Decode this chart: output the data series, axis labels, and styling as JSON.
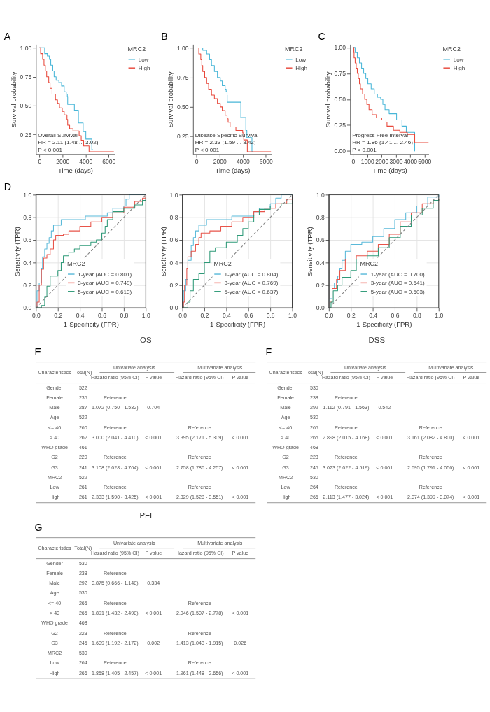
{
  "chart_data": [
    {
      "type": "step",
      "xlabel": "Time (days)",
      "ylabel": "Survival probability",
      "legend_title": "MRC2",
      "legend": "top right",
      "xlim": [
        -300,
        6500
      ],
      "xticks": [
        0,
        2000,
        4000,
        6000
      ],
      "ylim": [
        0.08,
        1.03
      ],
      "yticks": [
        {
          "value": 0.25,
          "label": "0.25"
        },
        {
          "value": 0.5,
          "label": "0.50"
        },
        {
          "value": 0.75,
          "label": "0.75"
        },
        {
          "value": 1,
          "label": "1.00"
        }
      ],
      "annotations": [
        "A",
        "Overall Survival",
        "HR = 2.11 (1.48 ... 3.02)",
        "P < 0.001"
      ],
      "series": [
        {
          "name": "Low",
          "color": "#48b6d8",
          "x": [
            0,
            460,
            690,
            870,
            985,
            1160,
            1275,
            1450,
            1690,
            1920,
            2150,
            2330,
            2420,
            2450,
            3030,
            3380,
            3790,
            4020,
            4540,
            4620
          ],
          "values": [
            1,
            0.95,
            0.93,
            0.9,
            0.85,
            0.8,
            0.75,
            0.72,
            0.7,
            0.67,
            0.62,
            0.6,
            0.58,
            0.51,
            0.46,
            0.35,
            0.275,
            0.21,
            0.12,
            0.12
          ]
        },
        {
          "name": "High",
          "color": "#e8483b",
          "x": [
            0,
            105,
            280,
            400,
            515,
            630,
            810,
            925,
            1100,
            1390,
            1570,
            1740,
            1980,
            2150,
            2390,
            2450,
            2620,
            2910,
            3440,
            3620,
            3830,
            4300,
            6450
          ],
          "values": [
            1,
            0.95,
            0.9,
            0.85,
            0.8,
            0.75,
            0.7,
            0.65,
            0.6,
            0.55,
            0.52,
            0.48,
            0.45,
            0.42,
            0.38,
            0.33,
            0.3,
            0.28,
            0.24,
            0.2,
            0.15,
            0.1,
            0.1
          ]
        }
      ]
    },
    {
      "type": "step",
      "xlabel": "Time (days)",
      "ylabel": "Survival probability",
      "legend_title": "MRC2",
      "legend": "top right",
      "xlim": [
        -300,
        6500
      ],
      "xticks": [
        0,
        2000,
        4000,
        6000
      ],
      "ylim": [
        0.1,
        1.03
      ],
      "yticks": [
        {
          "value": 0.25,
          "label": "0.25"
        },
        {
          "value": 0.5,
          "label": "0.50"
        },
        {
          "value": 0.75,
          "label": "0.75"
        },
        {
          "value": 1,
          "label": "1.00"
        }
      ],
      "annotations": [
        "B",
        "Disease Specific Survival",
        "HR = 2.33 (1.59 ... 3.42)",
        "P < 0.001"
      ],
      "series": [
        {
          "name": "Low",
          "color": "#48b6d8",
          "x": [
            0,
            540,
            880,
            1130,
            1300,
            1550,
            1810,
            2060,
            2230,
            2480,
            2570,
            2650,
            2660,
            3840,
            4270,
            4360,
            4800,
            4880
          ],
          "values": [
            1,
            0.98,
            0.95,
            0.9,
            0.85,
            0.8,
            0.75,
            0.72,
            0.68,
            0.65,
            0.63,
            0.6,
            0.54,
            0.41,
            0.3,
            0.24,
            0.12,
            0.12
          ]
        },
        {
          "name": "High",
          "color": "#e8483b",
          "x": [
            0,
            200,
            370,
            460,
            540,
            710,
            880,
            1050,
            1300,
            1550,
            1810,
            2060,
            2230,
            2480,
            2650,
            2740,
            2910,
            3410,
            4000,
            4090,
            4400,
            6450
          ],
          "values": [
            1,
            0.95,
            0.9,
            0.85,
            0.8,
            0.75,
            0.7,
            0.65,
            0.6,
            0.57,
            0.53,
            0.5,
            0.47,
            0.43,
            0.4,
            0.37,
            0.33,
            0.3,
            0.28,
            0.22,
            0.12,
            0.12
          ]
        }
      ]
    },
    {
      "type": "step",
      "xlabel": "Time (days)",
      "ylabel": "Survival probability",
      "legend_title": "MRC2",
      "legend": "top right",
      "xlim": [
        -200,
        5300
      ],
      "xticks": [
        0,
        1000,
        2000,
        3000,
        4000,
        5000
      ],
      "ylim": [
        -0.03,
        1.03
      ],
      "yticks": [
        {
          "value": 0,
          "label": "0.00"
        },
        {
          "value": 0.25,
          "label": "0.25"
        },
        {
          "value": 0.5,
          "label": "0.50"
        },
        {
          "value": 0.75,
          "label": "0.75"
        },
        {
          "value": 1,
          "label": "1.00"
        }
      ],
      "annotations": [
        "C",
        "Progress Free Interval",
        "HR = 1.86 (1.41 ... 2.46)",
        "P < 0.001"
      ],
      "series": [
        {
          "name": "Low",
          "color": "#48b6d8",
          "x": [
            0,
            150,
            300,
            450,
            600,
            745,
            895,
            1040,
            1270,
            1490,
            1710,
            1940,
            2090,
            2240,
            2530,
            3050,
            3430,
            3730,
            4320,
            4330
          ],
          "values": [
            1,
            0.95,
            0.9,
            0.85,
            0.8,
            0.75,
            0.7,
            0.65,
            0.6,
            0.55,
            0.52,
            0.5,
            0.45,
            0.4,
            0.36,
            0.3,
            0.24,
            0.18,
            0,
            0
          ]
        },
        {
          "name": "High",
          "color": "#e8483b",
          "x": [
            0,
            60,
            75,
            150,
            225,
            300,
            370,
            450,
            520,
            670,
            820,
            970,
            1120,
            1340,
            1640,
            2010,
            2310,
            2380,
            2830,
            3280,
            3800,
            4320,
            5290
          ],
          "values": [
            1,
            0.95,
            0.9,
            0.85,
            0.8,
            0.75,
            0.7,
            0.65,
            0.6,
            0.55,
            0.5,
            0.45,
            0.4,
            0.35,
            0.32,
            0.3,
            0.28,
            0.24,
            0.2,
            0.18,
            0.16,
            0.08,
            0.08
          ]
        }
      ]
    },
    {
      "type": "step",
      "xlabel": "1-Specificity (FPR)",
      "ylabel": "Sensitivity (TPR)",
      "legend_title": "MRC2",
      "legend": "bottom right",
      "grid": true,
      "xlim": [
        0,
        1
      ],
      "ylim": [
        0,
        1
      ],
      "xticks": [
        {
          "value": 0,
          "label": "0.0"
        },
        {
          "value": 0.2,
          "label": "0.2"
        },
        {
          "value": 0.4,
          "label": "0.4"
        },
        {
          "value": 0.6,
          "label": "0.6"
        },
        {
          "value": 0.8,
          "label": "0.8"
        },
        {
          "value": 1,
          "label": "1.0"
        }
      ],
      "yticks": [
        {
          "value": 0,
          "label": "0.0"
        },
        {
          "value": 0.2,
          "label": "0.2"
        },
        {
          "value": 0.4,
          "label": "0.4"
        },
        {
          "value": 0.6,
          "label": "0.6"
        },
        {
          "value": 0.8,
          "label": "0.8"
        },
        {
          "value": 1,
          "label": "1.0"
        }
      ],
      "annotations": [
        "D"
      ],
      "series": [
        {
          "name": "1-year (AUC = 0.801)",
          "color": "#59b9d9",
          "x": [
            0,
            0.01,
            0.03,
            0.05,
            0.06,
            0.08,
            0.1,
            0.12,
            0.14,
            0.16,
            0.2,
            0.23,
            0.4,
            0.45,
            0.6,
            0.65,
            0.7,
            0.8,
            0.82,
            0.85,
            1
          ],
          "values": [
            0,
            0.15,
            0.22,
            0.35,
            0.45,
            0.52,
            0.57,
            0.62,
            0.68,
            0.73,
            0.73,
            0.78,
            0.78,
            0.81,
            0.81,
            0.84,
            0.88,
            0.9,
            0.96,
            1,
            1
          ]
        },
        {
          "name": "3-year (AUC = 0.749)",
          "color": "#e8544a",
          "x": [
            0,
            0.01,
            0.03,
            0.05,
            0.07,
            0.1,
            0.13,
            0.16,
            0.18,
            0.25,
            0.3,
            0.4,
            0.5,
            0.6,
            0.7,
            0.8,
            0.9,
            0.97,
            1
          ],
          "values": [
            0,
            0.05,
            0.2,
            0.34,
            0.44,
            0.47,
            0.52,
            0.6,
            0.64,
            0.65,
            0.68,
            0.72,
            0.76,
            0.8,
            0.84,
            0.89,
            0.94,
            0.97,
            1
          ]
        },
        {
          "name": "5-year (AUC = 0.613)",
          "color": "#2e9a78",
          "x": [
            0,
            0.05,
            0.08,
            0.1,
            0.13,
            0.2,
            0.23,
            0.25,
            0.3,
            0.35,
            0.4,
            0.5,
            0.55,
            0.6,
            0.63,
            0.65,
            0.7,
            0.8,
            0.9,
            0.97,
            1
          ],
          "values": [
            0,
            0.02,
            0.1,
            0.19,
            0.28,
            0.33,
            0.4,
            0.46,
            0.49,
            0.52,
            0.55,
            0.58,
            0.6,
            0.66,
            0.72,
            0.78,
            0.85,
            0.88,
            0.91,
            0.95,
            0.96
          ]
        },
        {
          "type": "line",
          "color": "#808080",
          "line_style": "dashed",
          "x": [
            0,
            1
          ],
          "values": [
            0,
            1
          ]
        }
      ]
    },
    {
      "type": "step",
      "xlabel": "1-Specificity (FPR)",
      "ylabel": "Sensitivity (TPR)",
      "legend_title": "MRC2",
      "legend": "bottom right",
      "grid": true,
      "xlim": [
        0,
        1
      ],
      "ylim": [
        0,
        1
      ],
      "xticks": [
        {
          "value": 0,
          "label": "0.0"
        },
        {
          "value": 0.2,
          "label": "0.2"
        },
        {
          "value": 0.4,
          "label": "0.4"
        },
        {
          "value": 0.6,
          "label": "0.6"
        },
        {
          "value": 0.8,
          "label": "0.8"
        },
        {
          "value": 1,
          "label": "1.0"
        }
      ],
      "yticks": [
        {
          "value": 0,
          "label": "0.0"
        },
        {
          "value": 0.2,
          "label": "0.2"
        },
        {
          "value": 0.4,
          "label": "0.4"
        },
        {
          "value": 0.6,
          "label": "0.6"
        },
        {
          "value": 0.8,
          "label": "0.8"
        },
        {
          "value": 1,
          "label": "1.0"
        }
      ],
      "series": [
        {
          "name": "1-year (AUC = 0.804)",
          "color": "#59b9d9",
          "x": [
            0,
            0.01,
            0.03,
            0.05,
            0.08,
            0.1,
            0.12,
            0.15,
            0.2,
            0.22,
            0.4,
            0.45,
            0.6,
            0.65,
            0.7,
            0.8,
            0.85,
            0.9,
            1
          ],
          "values": [
            0,
            0.15,
            0.25,
            0.42,
            0.55,
            0.62,
            0.68,
            0.73,
            0.73,
            0.78,
            0.78,
            0.81,
            0.81,
            0.85,
            0.88,
            0.92,
            0.97,
            1,
            1
          ]
        },
        {
          "name": "3-year (AUC = 0.769)",
          "color": "#e8544a",
          "x": [
            0,
            0.01,
            0.02,
            0.04,
            0.05,
            0.08,
            0.12,
            0.15,
            0.17,
            0.25,
            0.35,
            0.45,
            0.55,
            0.65,
            0.75,
            0.85,
            0.95,
            1
          ],
          "values": [
            0,
            0.05,
            0.2,
            0.35,
            0.45,
            0.5,
            0.56,
            0.62,
            0.66,
            0.68,
            0.72,
            0.76,
            0.8,
            0.85,
            0.88,
            0.92,
            0.96,
            0.98
          ]
        },
        {
          "name": "5-year (AUC = 0.637)",
          "color": "#2e9a78",
          "x": [
            0,
            0.05,
            0.07,
            0.1,
            0.15,
            0.2,
            0.25,
            0.3,
            0.4,
            0.5,
            0.55,
            0.6,
            0.65,
            0.7,
            0.8,
            0.9,
            1
          ],
          "values": [
            0,
            0.05,
            0.15,
            0.25,
            0.3,
            0.4,
            0.5,
            0.53,
            0.58,
            0.64,
            0.7,
            0.76,
            0.82,
            0.87,
            0.9,
            0.92,
            0.95
          ]
        },
        {
          "type": "line",
          "color": "#808080",
          "line_style": "dashed",
          "x": [
            0,
            1
          ],
          "values": [
            0,
            1
          ]
        }
      ]
    },
    {
      "type": "step",
      "xlabel": "1-Specificity (FPR)",
      "ylabel": "Sensitivity (TPR)",
      "legend_title": "MRC2",
      "legend": "bottom right",
      "grid": true,
      "xlim": [
        0,
        1
      ],
      "ylim": [
        0,
        1
      ],
      "xticks": [
        {
          "value": 0,
          "label": "0.0"
        },
        {
          "value": 0.2,
          "label": "0.2"
        },
        {
          "value": 0.4,
          "label": "0.4"
        },
        {
          "value": 0.6,
          "label": "0.6"
        },
        {
          "value": 0.8,
          "label": "0.8"
        },
        {
          "value": 1,
          "label": "1.0"
        }
      ],
      "yticks": [
        {
          "value": 0,
          "label": "0.0"
        },
        {
          "value": 0.2,
          "label": "0.2"
        },
        {
          "value": 0.4,
          "label": "0.4"
        },
        {
          "value": 0.6,
          "label": "0.6"
        },
        {
          "value": 0.8,
          "label": "0.8"
        },
        {
          "value": 1,
          "label": "1.0"
        }
      ],
      "series": [
        {
          "name": "1-year (AUC = 0.700)",
          "color": "#59b9d9",
          "x": [
            0,
            0.01,
            0.03,
            0.05,
            0.08,
            0.1,
            0.12,
            0.15,
            0.2,
            0.3,
            0.4,
            0.5,
            0.6,
            0.7,
            0.8,
            0.9,
            1
          ],
          "values": [
            0,
            0.08,
            0.17,
            0.22,
            0.28,
            0.35,
            0.42,
            0.5,
            0.56,
            0.58,
            0.63,
            0.7,
            0.78,
            0.84,
            0.9,
            0.98,
            1
          ]
        },
        {
          "name": "3-year (AUC = 0.641)",
          "color": "#e8544a",
          "x": [
            0,
            0.01,
            0.03,
            0.07,
            0.1,
            0.15,
            0.25,
            0.35,
            0.45,
            0.55,
            0.65,
            0.75,
            0.85,
            0.95,
            1
          ],
          "values": [
            0,
            0.05,
            0.17,
            0.25,
            0.33,
            0.43,
            0.46,
            0.5,
            0.56,
            0.65,
            0.76,
            0.84,
            0.92,
            0.95,
            0.96
          ]
        },
        {
          "name": "5-year (AUC = 0.603)",
          "color": "#2e9a78",
          "x": [
            0,
            0.02,
            0.04,
            0.08,
            0.12,
            0.2,
            0.25,
            0.35,
            0.45,
            0.55,
            0.65,
            0.75,
            0.85,
            0.95,
            1
          ],
          "values": [
            0,
            0.05,
            0.15,
            0.2,
            0.27,
            0.33,
            0.43,
            0.46,
            0.53,
            0.62,
            0.72,
            0.82,
            0.88,
            0.95,
            0.96
          ]
        },
        {
          "type": "line",
          "color": "#808080",
          "line_style": "dashed",
          "x": [
            0,
            1
          ],
          "values": [
            0,
            1
          ]
        }
      ]
    },
    {
      "type": "other",
      "title": "OS",
      "annotations": [
        "E",
        "Characteristics",
        "Univariate analysis",
        "Multivariate analysis"
      ],
      "categories": [
        "Total(N)",
        "Hazard ratio (95% CI)",
        "P value",
        "Hazard ratio (95% CI)",
        "P value"
      ],
      "y_categories": [
        "Gender",
        "Female",
        "Male",
        "Age",
        "<= 40",
        "> 40",
        "WHO grade",
        "G2",
        "G3",
        "MRC2",
        "Low",
        "High"
      ],
      "cell_labels": [
        [
          "522",
          null,
          null,
          null,
          null
        ],
        [
          "235",
          "Reference",
          null,
          null,
          null
        ],
        [
          "287",
          "1.072 (0.750 - 1.532)",
          "0.704",
          null,
          null
        ],
        [
          "522",
          null,
          null,
          null,
          null
        ],
        [
          "260",
          "Reference",
          null,
          "Reference",
          null
        ],
        [
          "262",
          "3.000 (2.041 - 4.410)",
          "< 0.001",
          "3.395 (2.171 - 5.309)",
          "< 0.001"
        ],
        [
          "461",
          null,
          null,
          null,
          null
        ],
        [
          "220",
          "Reference",
          null,
          "Reference",
          null
        ],
        [
          "241",
          "3.108 (2.028 - 4.764)",
          "< 0.001",
          "2.758 (1.786 - 4.257)",
          "< 0.001"
        ],
        [
          "522",
          null,
          null,
          null,
          null
        ],
        [
          "261",
          "Reference",
          null,
          "Reference",
          null
        ],
        [
          "261",
          "2.333 (1.590 - 3.425)",
          "< 0.001",
          "2.329 (1.528 - 3.551)",
          "< 0.001"
        ]
      ]
    },
    {
      "type": "other",
      "title": "DSS",
      "annotations": [
        "F",
        "Characteristics",
        "Univariate analysis",
        "Multivariate analysis"
      ],
      "categories": [
        "Total(N)",
        "Hazard ratio (95% CI)",
        "P value",
        "Hazard ratio (95% CI)",
        "P value"
      ],
      "y_categories": [
        "Gender",
        "Female",
        "Male",
        "Age",
        "<= 40",
        "> 40",
        "WHO grade",
        "G2",
        "G3",
        "MRC2",
        "Low",
        "High"
      ],
      "cell_labels": [
        [
          "530",
          null,
          null,
          null,
          null
        ],
        [
          "238",
          "Reference",
          null,
          null,
          null
        ],
        [
          "292",
          "1.112 (0.791 - 1.563)",
          "0.542",
          null,
          null
        ],
        [
          "530",
          null,
          null,
          null,
          null
        ],
        [
          "265",
          "Reference",
          null,
          "Reference",
          null
        ],
        [
          "265",
          "2.898 (2.015 - 4.168)",
          "< 0.001",
          "3.161 (2.082 - 4.800)",
          "< 0.001"
        ],
        [
          "468",
          null,
          null,
          null,
          null
        ],
        [
          "223",
          "Reference",
          null,
          "Reference",
          null
        ],
        [
          "245",
          "3.023 (2.022 - 4.519)",
          "< 0.001",
          "2.695 (1.791 - 4.056)",
          "< 0.001"
        ],
        [
          "530",
          null,
          null,
          null,
          null
        ],
        [
          "264",
          "Reference",
          null,
          "Reference",
          null
        ],
        [
          "266",
          "2.113 (1.477 - 3.024)",
          "< 0.001",
          "2.074 (1.399 - 3.074)",
          "< 0.001"
        ]
      ]
    },
    {
      "type": "other",
      "title": "PFI",
      "annotations": [
        "G",
        "Characteristics",
        "Univariate analysis",
        "Multivariate analysis"
      ],
      "categories": [
        "Total(N)",
        "Hazard ratio (95% CI)",
        "P value",
        "Hazard ratio (95% CI)",
        "P value"
      ],
      "y_categories": [
        "Gender",
        "Female",
        "Male",
        "Age",
        "<= 40",
        "> 40",
        "WHO grade",
        "G2",
        "G3",
        "MRC2",
        "Low",
        "High"
      ],
      "cell_labels": [
        [
          "530",
          null,
          null,
          null,
          null
        ],
        [
          "238",
          "Reference",
          null,
          null,
          null
        ],
        [
          "292",
          "0.875 (0.666 - 1.148)",
          "0.334",
          null,
          null
        ],
        [
          "530",
          null,
          null,
          null,
          null
        ],
        [
          "265",
          "Reference",
          null,
          "Reference",
          null
        ],
        [
          "265",
          "1.891 (1.432 - 2.498)",
          "< 0.001",
          "2.046 (1.507 - 2.778)",
          "< 0.001"
        ],
        [
          "468",
          null,
          null,
          null,
          null
        ],
        [
          "223",
          "Reference",
          null,
          "Reference",
          null
        ],
        [
          "245",
          "1.609 (1.192 - 2.172)",
          "0.002",
          "1.413 (1.043 - 1.915)",
          "0.026"
        ],
        [
          "530",
          null,
          null,
          null,
          null
        ],
        [
          "264",
          "Reference",
          null,
          "Reference",
          null
        ],
        [
          "266",
          "1.858 (1.405 - 2.457)",
          "< 0.001",
          "1.961 (1.448 - 2.656)",
          "< 0.001"
        ]
      ]
    }
  ]
}
